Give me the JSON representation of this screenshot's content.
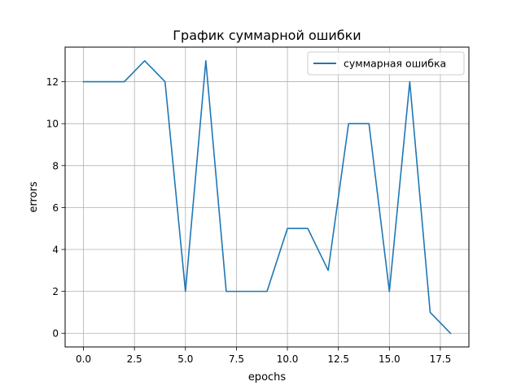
{
  "chart_data": {
    "type": "line",
    "title": "График суммарной ошибки",
    "xlabel": "epochs",
    "ylabel": "errors",
    "xlim": [
      -0.9,
      18.9
    ],
    "ylim": [
      -0.65,
      13.65
    ],
    "x_ticks": [
      0.0,
      2.5,
      5.0,
      7.5,
      10.0,
      12.5,
      15.0,
      17.5
    ],
    "x_tick_labels": [
      "0.0",
      "2.5",
      "5.0",
      "7.5",
      "10.0",
      "12.5",
      "15.0",
      "17.5"
    ],
    "y_ticks": [
      0,
      2,
      4,
      6,
      8,
      10,
      12
    ],
    "y_tick_labels": [
      "0",
      "2",
      "4",
      "6",
      "8",
      "10",
      "12"
    ],
    "grid": true,
    "legend_position": "top-right",
    "series": [
      {
        "name": "суммарная ошибка",
        "color": "#1f77b4",
        "x": [
          0,
          1,
          2,
          3,
          4,
          5,
          6,
          7,
          8,
          9,
          10,
          11,
          12,
          13,
          14,
          15,
          16,
          17,
          18
        ],
        "values": [
          12,
          12,
          12,
          13,
          12,
          2,
          13,
          2,
          2,
          2,
          5,
          5,
          3,
          10,
          10,
          2,
          12,
          1,
          0
        ]
      }
    ]
  }
}
